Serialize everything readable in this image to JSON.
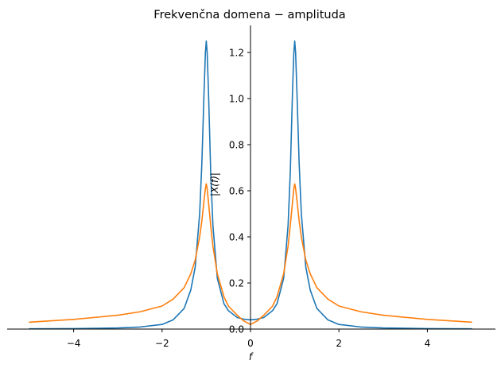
{
  "chart_data": {
    "type": "line",
    "title": "Frekvenčna domena − amplituda",
    "xlabel": "f",
    "ylabel": "|X(f)|",
    "xlim": [
      -5,
      5
    ],
    "ylim": [
      0,
      1.3
    ],
    "x_ticks": [
      -4,
      -2,
      0,
      2,
      4
    ],
    "x_tick_labels": [
      "−4",
      "−2",
      "0",
      "2",
      "4"
    ],
    "y_ticks": [
      0.0,
      0.2,
      0.4,
      0.6,
      0.8,
      1.0,
      1.2
    ],
    "y_tick_labels": [
      "0.0",
      "0.2",
      "0.4",
      "0.6",
      "0.8",
      "1.0",
      "1.2"
    ],
    "grid": false,
    "spines": "centered-at-origin",
    "series": [
      {
        "color": "#1f77b4",
        "x": [
          -5.0,
          -4.0,
          -3.0,
          -2.5,
          -2.0,
          -1.75,
          -1.5,
          -1.35,
          -1.25,
          -1.15,
          -1.1,
          -1.05,
          -1.02,
          -1.0,
          -0.98,
          -0.95,
          -0.9,
          -0.85,
          -0.75,
          -0.6,
          -0.5,
          -0.3,
          -0.15,
          0.0,
          0.15,
          0.3,
          0.5,
          0.6,
          0.75,
          0.85,
          0.9,
          0.95,
          0.98,
          1.0,
          1.02,
          1.05,
          1.1,
          1.15,
          1.25,
          1.35,
          1.5,
          1.75,
          2.0,
          2.5,
          3.0,
          4.0,
          5.0
        ],
        "y": [
          0.001,
          0.002,
          0.005,
          0.009,
          0.02,
          0.04,
          0.09,
          0.17,
          0.27,
          0.5,
          0.72,
          1.03,
          1.2,
          1.25,
          1.2,
          1.03,
          0.68,
          0.45,
          0.22,
          0.11,
          0.08,
          0.05,
          0.043,
          0.04,
          0.043,
          0.05,
          0.08,
          0.11,
          0.22,
          0.45,
          0.68,
          1.03,
          1.2,
          1.25,
          1.2,
          1.03,
          0.72,
          0.5,
          0.27,
          0.17,
          0.09,
          0.04,
          0.02,
          0.009,
          0.005,
          0.002,
          0.001
        ]
      },
      {
        "color": "#ff7f0e",
        "x": [
          -5.0,
          -4.0,
          -3.0,
          -2.5,
          -2.0,
          -1.75,
          -1.5,
          -1.35,
          -1.25,
          -1.15,
          -1.1,
          -1.05,
          -1.02,
          -1.0,
          -0.98,
          -0.95,
          -0.9,
          -0.85,
          -0.75,
          -0.6,
          -0.5,
          -0.3,
          -0.15,
          0.0,
          0.15,
          0.3,
          0.5,
          0.6,
          0.75,
          0.85,
          0.9,
          0.95,
          0.98,
          1.0,
          1.02,
          1.05,
          1.1,
          1.15,
          1.25,
          1.35,
          1.5,
          1.75,
          2.0,
          2.5,
          3.0,
          4.0,
          5.0
        ],
        "y": [
          0.03,
          0.042,
          0.06,
          0.075,
          0.1,
          0.13,
          0.18,
          0.24,
          0.3,
          0.4,
          0.47,
          0.56,
          0.61,
          0.63,
          0.61,
          0.55,
          0.45,
          0.36,
          0.24,
          0.14,
          0.1,
          0.06,
          0.035,
          0.02,
          0.035,
          0.06,
          0.1,
          0.14,
          0.24,
          0.36,
          0.45,
          0.55,
          0.61,
          0.63,
          0.61,
          0.56,
          0.47,
          0.4,
          0.3,
          0.24,
          0.18,
          0.13,
          0.1,
          0.075,
          0.06,
          0.042,
          0.03
        ]
      }
    ]
  }
}
